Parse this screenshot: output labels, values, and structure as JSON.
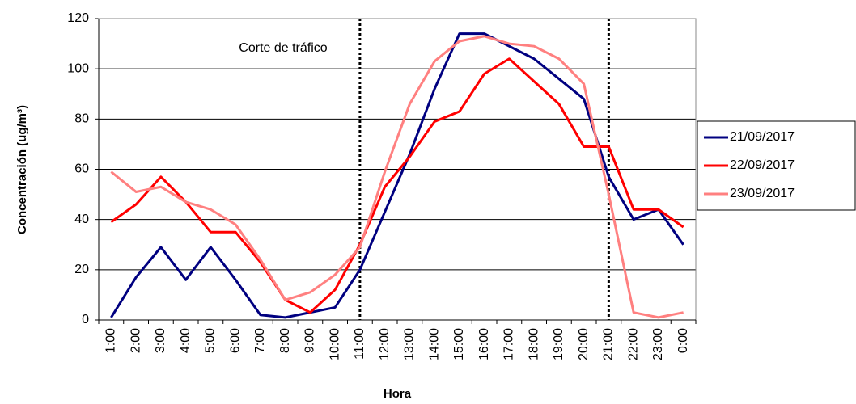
{
  "chart_data": {
    "type": "line",
    "xlabel": "Hora",
    "ylabel": "Concentración (ug/m³)",
    "annotation": "Corte de tráfico",
    "categories": [
      "1:00",
      "2:00",
      "3:00",
      "4:00",
      "5:00",
      "6:00",
      "7:00",
      "8:00",
      "9:00",
      "10:00",
      "11:00",
      "12:00",
      "13:00",
      "14:00",
      "15:00",
      "16:00",
      "17:00",
      "18:00",
      "19:00",
      "20:00",
      "21:00",
      "22:00",
      "23:00",
      "0:00"
    ],
    "vlines": [
      "11:00",
      "21:00"
    ],
    "series": [
      {
        "name": "21/09/2017",
        "color": "#000080",
        "values": [
          1,
          17,
          29,
          16,
          29,
          16,
          2,
          1,
          3,
          5,
          20,
          43,
          66,
          92,
          114,
          114,
          109,
          104,
          96,
          88,
          57,
          40,
          44,
          30
        ]
      },
      {
        "name": "22/09/2017",
        "color": "#ff0000",
        "values": [
          39,
          46,
          57,
          47,
          35,
          35,
          23,
          8,
          3,
          12,
          30,
          53,
          65,
          79,
          83,
          98,
          104,
          95,
          86,
          69,
          69,
          44,
          44,
          37
        ]
      },
      {
        "name": "23/09/2017",
        "color": "#ff8080",
        "values": [
          59,
          51,
          53,
          47,
          44,
          38,
          24,
          8,
          11,
          18,
          29,
          59,
          86,
          103,
          111,
          113,
          110,
          109,
          104,
          94,
          50,
          3,
          1,
          3
        ]
      }
    ],
    "ylim": [
      0,
      120
    ],
    "yticks": [
      0,
      20,
      40,
      60,
      80,
      100,
      120
    ],
    "grid": true,
    "legend": "right"
  }
}
